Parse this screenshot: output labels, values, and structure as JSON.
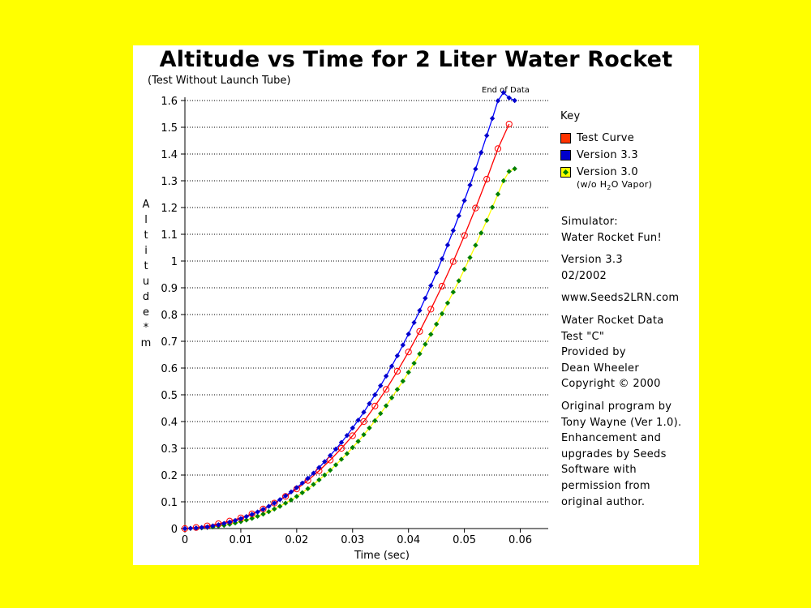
{
  "page": {
    "background_color": "#ffff00",
    "panel_color": "#ffffff"
  },
  "chart_data": {
    "type": "scatter",
    "title": "Altitude vs Time for 2 Liter Water Rocket",
    "subtitle": "(Test Without Launch Tube)",
    "annotation": "End of Data",
    "xlabel": "Time (sec)",
    "ylabel": "Altitude * m",
    "xlim": [
      0,
      0.065
    ],
    "ylim": [
      0,
      1.6
    ],
    "xticks": [
      0,
      0.01,
      0.02,
      0.03,
      0.04,
      0.05,
      0.06
    ],
    "xtick_labels": [
      "0",
      "0.01",
      "0.02",
      "0.03",
      "0.04",
      "0.05",
      "0.06"
    ],
    "yticks": [
      0,
      0.1,
      0.2,
      0.3,
      0.4,
      0.5,
      0.6,
      0.7,
      0.8,
      0.9,
      1,
      1.1,
      1.2,
      1.3,
      1.4,
      1.5,
      1.6
    ],
    "ytick_labels": [
      "0",
      "0.1",
      "0.2",
      "0.3",
      "0.4",
      "0.5",
      "0.6",
      "0.7",
      "0.8",
      "0.9",
      "1",
      "1.1",
      "1.2",
      "1.3",
      "1.4",
      "1.5",
      "1.6"
    ],
    "grid": "horizontal dotted",
    "legend_position": "right",
    "series": [
      {
        "name": "Test Curve",
        "color": "#ff0000",
        "marker": "open-circle",
        "x": [
          0,
          0.002,
          0.004,
          0.006,
          0.008,
          0.01,
          0.012,
          0.014,
          0.016,
          0.018,
          0.02,
          0.022,
          0.024,
          0.026,
          0.028,
          0.03,
          0.032,
          0.034,
          0.036,
          0.038,
          0.04,
          0.042,
          0.044,
          0.046,
          0.048,
          0.05,
          0.052,
          0.054,
          0.056,
          0.058
        ],
        "y": [
          0,
          0.004,
          0.01,
          0.018,
          0.028,
          0.04,
          0.055,
          0.073,
          0.095,
          0.12,
          0.148,
          0.18,
          0.216,
          0.256,
          0.3,
          0.347,
          0.4,
          0.458,
          0.52,
          0.588,
          0.66,
          0.737,
          0.82,
          0.906,
          0.998,
          1.095,
          1.198,
          1.306,
          1.42,
          1.512
        ]
      },
      {
        "name": "Version 3.3",
        "color": "#0000ff",
        "marker": "filled-diamond",
        "marker_color": "#0000cc",
        "x": [
          0,
          0.001,
          0.002,
          0.003,
          0.004,
          0.005,
          0.006,
          0.007,
          0.008,
          0.009,
          0.01,
          0.011,
          0.012,
          0.013,
          0.014,
          0.015,
          0.016,
          0.017,
          0.018,
          0.019,
          0.02,
          0.021,
          0.022,
          0.023,
          0.024,
          0.025,
          0.026,
          0.027,
          0.028,
          0.029,
          0.03,
          0.031,
          0.032,
          0.033,
          0.034,
          0.035,
          0.036,
          0.037,
          0.038,
          0.039,
          0.04,
          0.041,
          0.042,
          0.043,
          0.044,
          0.045,
          0.046,
          0.047,
          0.048,
          0.049,
          0.05,
          0.051,
          0.052,
          0.053,
          0.054,
          0.055,
          0.056,
          0.057,
          0.058,
          0.059
        ],
        "y": [
          0,
          0.001,
          0.002,
          0.004,
          0.006,
          0.01,
          0.014,
          0.019,
          0.024,
          0.03,
          0.037,
          0.045,
          0.053,
          0.062,
          0.072,
          0.083,
          0.095,
          0.108,
          0.122,
          0.137,
          0.153,
          0.17,
          0.188,
          0.207,
          0.228,
          0.25,
          0.273,
          0.297,
          0.322,
          0.348,
          0.376,
          0.405,
          0.435,
          0.467,
          0.5,
          0.534,
          0.57,
          0.607,
          0.646,
          0.686,
          0.727,
          0.77,
          0.815,
          0.861,
          0.908,
          0.957,
          1.008,
          1.06,
          1.114,
          1.169,
          1.226,
          1.284,
          1.344,
          1.406,
          1.469,
          1.533,
          1.599,
          1.63,
          1.61,
          1.6
        ]
      },
      {
        "name": "Version 3.0",
        "note": "(w/o H2O Vapor)",
        "color": "#ffff00",
        "marker": "filled-diamond",
        "marker_color": "#008000",
        "x": [
          0,
          0.001,
          0.002,
          0.003,
          0.004,
          0.005,
          0.006,
          0.007,
          0.008,
          0.009,
          0.01,
          0.011,
          0.012,
          0.013,
          0.014,
          0.015,
          0.016,
          0.017,
          0.018,
          0.019,
          0.02,
          0.021,
          0.022,
          0.023,
          0.024,
          0.025,
          0.026,
          0.027,
          0.028,
          0.029,
          0.03,
          0.031,
          0.032,
          0.033,
          0.034,
          0.035,
          0.036,
          0.037,
          0.038,
          0.039,
          0.04,
          0.041,
          0.042,
          0.043,
          0.044,
          0.045,
          0.046,
          0.047,
          0.048,
          0.049,
          0.05,
          0.051,
          0.052,
          0.053,
          0.054,
          0.055,
          0.056,
          0.057,
          0.058,
          0.059
        ],
        "y": [
          0,
          0.0006,
          0.0014,
          0.0025,
          0.004,
          0.006,
          0.009,
          0.012,
          0.016,
          0.021,
          0.026,
          0.032,
          0.038,
          0.046,
          0.054,
          0.063,
          0.073,
          0.083,
          0.095,
          0.107,
          0.12,
          0.134,
          0.149,
          0.165,
          0.182,
          0.2,
          0.218,
          0.238,
          0.259,
          0.28,
          0.303,
          0.326,
          0.351,
          0.376,
          0.403,
          0.43,
          0.459,
          0.489,
          0.52,
          0.551,
          0.584,
          0.618,
          0.653,
          0.689,
          0.726,
          0.764,
          0.803,
          0.843,
          0.884,
          0.926,
          0.969,
          1.013,
          1.059,
          1.105,
          1.152,
          1.201,
          1.25,
          1.3,
          1.335,
          1.345
        ]
      }
    ]
  },
  "legend": {
    "title": "Key",
    "items": [
      {
        "label": "Test Curve",
        "swatch_color": "#ff3300"
      },
      {
        "label": "Version 3.3",
        "swatch_color": "#0000cc"
      },
      {
        "label": "Version 3.0",
        "swatch_color": "#ffff00"
      }
    ],
    "note_prefix": "(w/o H",
    "note_sub": "2",
    "note_suffix": "O Vapor)"
  },
  "info": {
    "simulator": [
      "Simulator:",
      "Water Rocket Fun!"
    ],
    "version": [
      "Version 3.3",
      "02/2002"
    ],
    "website": "www.Seeds2LRN.com",
    "data": [
      "Water Rocket Data",
      "Test \"C\"",
      "Provided by",
      "Dean Wheeler",
      "Copyright © 2000"
    ],
    "credits": [
      "Original program by",
      "Tony Wayne (Ver 1.0).",
      "Enhancement and",
      "upgrades by Seeds",
      "Software with",
      "permission from",
      "original author."
    ]
  }
}
